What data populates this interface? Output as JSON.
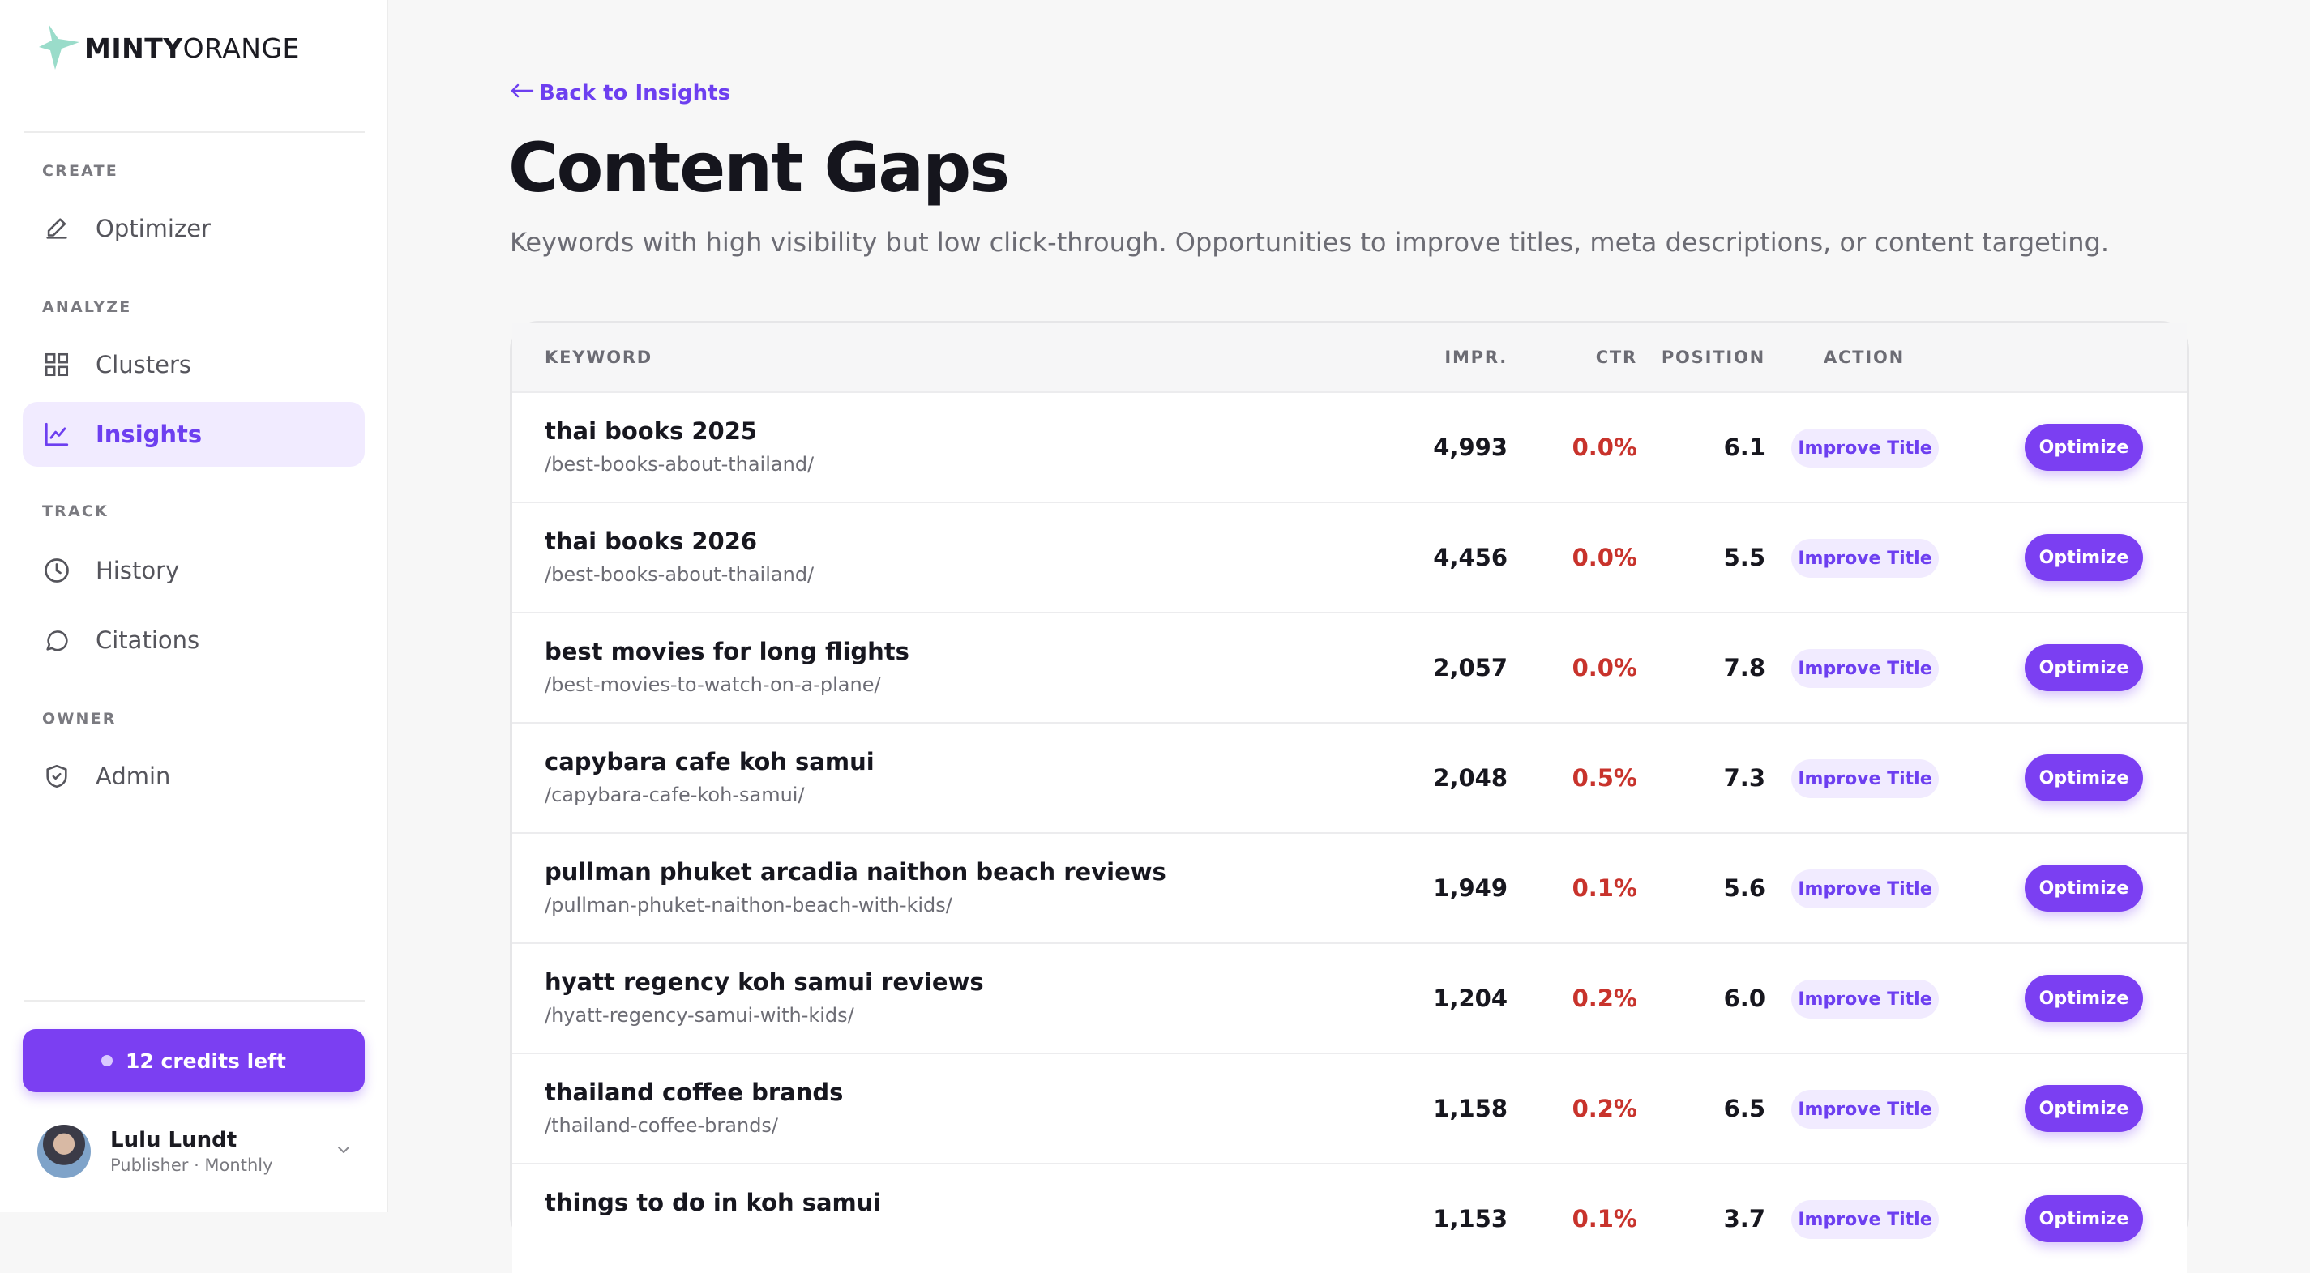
{
  "app": {
    "logo_bold": "MINTY",
    "logo_light": "ORANGE"
  },
  "sidebar": {
    "sections": [
      {
        "label": "CREATE"
      },
      {
        "label": "ANALYZE"
      },
      {
        "label": "TRACK"
      },
      {
        "label": "OWNER"
      }
    ],
    "items": [
      {
        "label": "Optimizer",
        "icon": "pencil-icon",
        "active": false
      },
      {
        "label": "Clusters",
        "icon": "grid-icon",
        "active": false
      },
      {
        "label": "Insights",
        "icon": "chart-line-icon",
        "active": true
      },
      {
        "label": "History",
        "icon": "clock-icon",
        "active": false
      },
      {
        "label": "Citations",
        "icon": "chat-bubble-icon",
        "active": false
      },
      {
        "label": "Admin",
        "icon": "shield-icon",
        "active": false
      }
    ],
    "credits_label": "12 credits left",
    "user": {
      "name": "Lulu Lundt",
      "plan": "Publisher · Monthly"
    }
  },
  "main": {
    "back_link": "Back to Insights",
    "title": "Content Gaps",
    "subtitle": "Keywords with high visibility but low click-through. Opportunities to improve titles, meta descriptions, or content targeting.",
    "table": {
      "headers": {
        "keyword": "KEYWORD",
        "impr": "IMPR.",
        "ctr": "CTR",
        "position": "POSITION",
        "action": "ACTION"
      },
      "action_label": "Improve Title",
      "optimize_label": "Optimize",
      "rows": [
        {
          "keyword": "thai books 2025",
          "url": "/best-books-about-thailand/",
          "impr": "4,993",
          "ctr": "0.0%",
          "position": "6.1"
        },
        {
          "keyword": "thai books 2026",
          "url": "/best-books-about-thailand/",
          "impr": "4,456",
          "ctr": "0.0%",
          "position": "5.5"
        },
        {
          "keyword": "best movies for long flights",
          "url": "/best-movies-to-watch-on-a-plane/",
          "impr": "2,057",
          "ctr": "0.0%",
          "position": "7.8"
        },
        {
          "keyword": "capybara cafe koh samui",
          "url": "/capybara-cafe-koh-samui/",
          "impr": "2,048",
          "ctr": "0.5%",
          "position": "7.3"
        },
        {
          "keyword": "pullman phuket arcadia naithon beach reviews",
          "url": "/pullman-phuket-naithon-beach-with-kids/",
          "impr": "1,949",
          "ctr": "0.1%",
          "position": "5.6"
        },
        {
          "keyword": "hyatt regency koh samui reviews",
          "url": "/hyatt-regency-samui-with-kids/",
          "impr": "1,204",
          "ctr": "0.2%",
          "position": "6.0"
        },
        {
          "keyword": "thailand coffee brands",
          "url": "/thailand-coffee-brands/",
          "impr": "1,158",
          "ctr": "0.2%",
          "position": "6.5"
        },
        {
          "keyword": "things to do in koh samui",
          "url": "",
          "impr": "1,153",
          "ctr": "0.1%",
          "position": "3.7"
        }
      ]
    }
  },
  "colors": {
    "accent": "#7b3ff2",
    "accent_text": "#6d3ff0",
    "accent_soft": "#f1ebff",
    "ctr_red": "#c8332c",
    "logo_mint": "#8fd8c4"
  }
}
